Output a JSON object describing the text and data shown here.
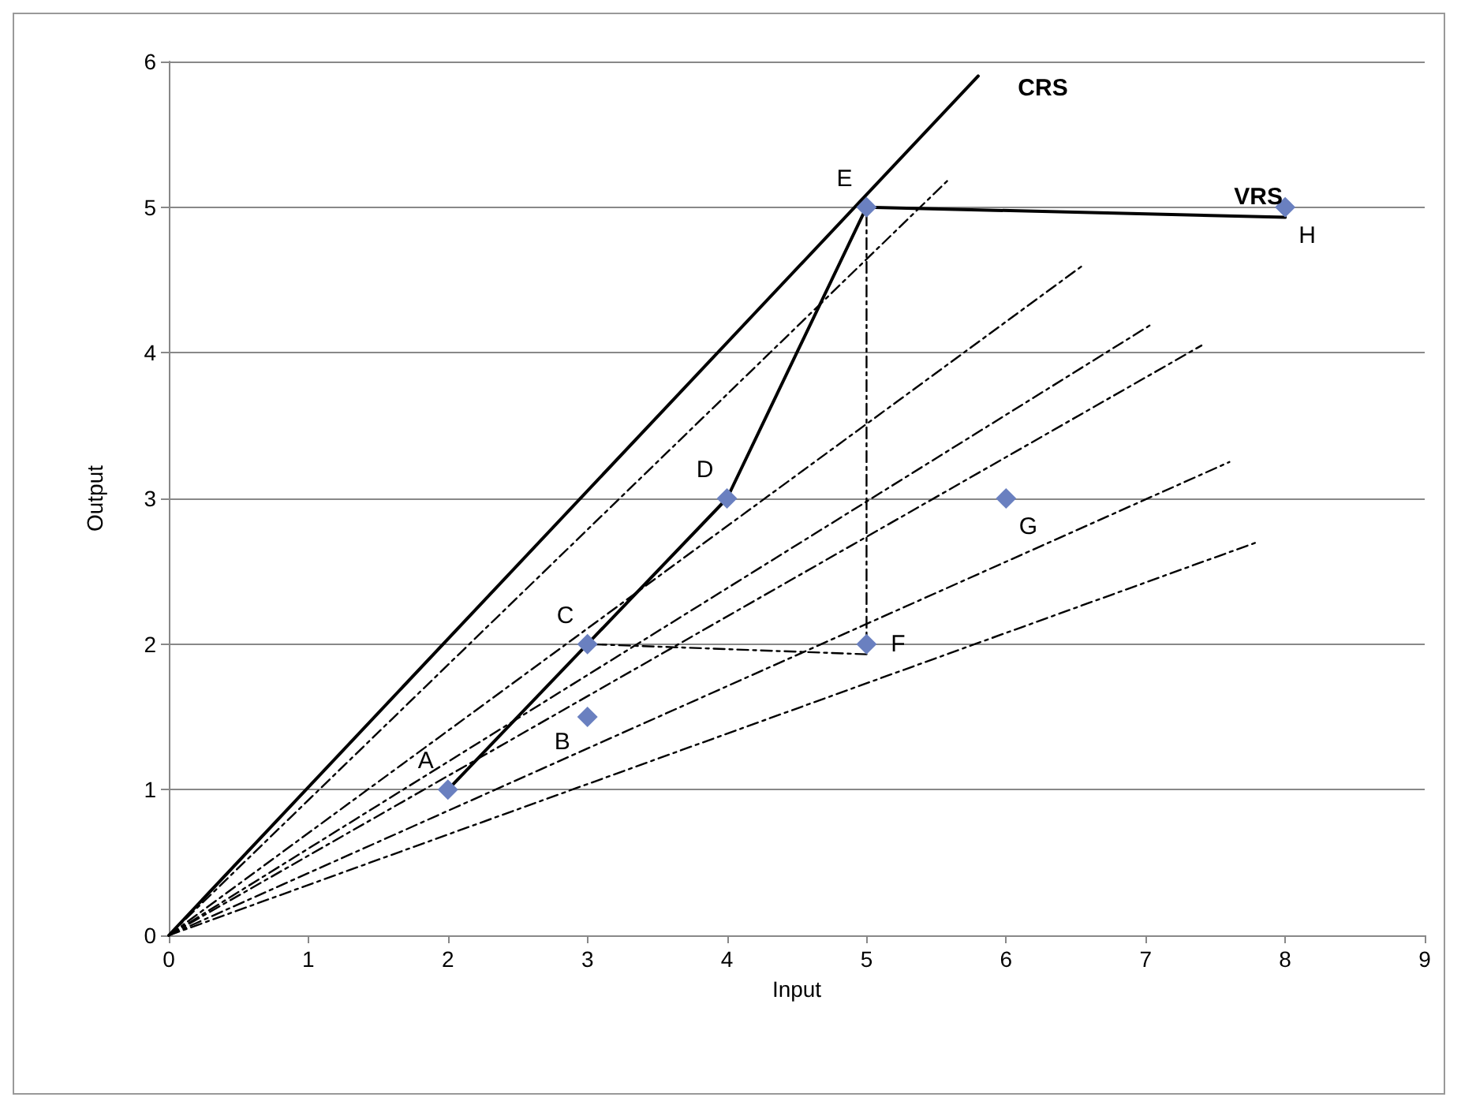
{
  "chart_data": {
    "type": "scatter",
    "xlabel": "Input",
    "ylabel": "Output",
    "xlim": [
      0,
      9
    ],
    "xticks": [
      0,
      1,
      2,
      3,
      4,
      5,
      6,
      7,
      8,
      9
    ],
    "ylim": [
      0,
      6
    ],
    "yticks": [
      0,
      1,
      2,
      3,
      4,
      5,
      6
    ],
    "grid": "y",
    "legend": false,
    "marker": "diamond",
    "series": [
      {
        "type": "line",
        "name": "CRS",
        "color": "#000000",
        "line_style": "solid",
        "marker": "none",
        "x": [
          0,
          5.8
        ],
        "values": [
          0,
          5.9
        ]
      },
      {
        "type": "line",
        "name": "VRS",
        "color": "#000000",
        "line_style": "solid",
        "marker": "none",
        "x": [
          2,
          3,
          4,
          5,
          8
        ],
        "values": [
          1,
          2,
          3,
          5,
          4.93
        ]
      },
      {
        "type": "line",
        "color": "#000000",
        "line_style": "dashed",
        "marker": "none",
        "x": [
          0,
          5.6
        ],
        "values": [
          0,
          5.2
        ]
      },
      {
        "type": "line",
        "color": "#000000",
        "line_style": "dashed",
        "marker": "none",
        "x": [
          0,
          6.55
        ],
        "values": [
          0,
          4.6
        ]
      },
      {
        "type": "line",
        "color": "#000000",
        "line_style": "dashed",
        "marker": "none",
        "x": [
          0,
          7.05
        ],
        "values": [
          0,
          4.2
        ]
      },
      {
        "type": "line",
        "color": "#000000",
        "line_style": "dashed",
        "marker": "none",
        "x": [
          0,
          7.4
        ],
        "values": [
          0,
          4.05
        ]
      },
      {
        "type": "line",
        "color": "#000000",
        "line_style": "dashed",
        "marker": "none",
        "x": [
          0,
          7.6
        ],
        "values": [
          0,
          3.25
        ]
      },
      {
        "type": "line",
        "color": "#000000",
        "line_style": "dashed",
        "marker": "none",
        "x": [
          0,
          7.8
        ],
        "values": [
          0,
          2.7
        ]
      },
      {
        "type": "line",
        "color": "#000000",
        "line_style": "dashed",
        "marker": "none",
        "x": [
          5,
          5
        ],
        "values": [
          1.95,
          5
        ]
      },
      {
        "type": "line",
        "color": "#000000",
        "line_style": "dashed",
        "marker": "none",
        "x": [
          5,
          3
        ],
        "values": [
          1.93,
          2
        ]
      },
      {
        "name": "A",
        "color": "#6a80c0",
        "x": [
          2
        ],
        "values": [
          1
        ]
      },
      {
        "name": "B",
        "color": "#6a80c0",
        "x": [
          3
        ],
        "values": [
          1.5
        ]
      },
      {
        "name": "C",
        "color": "#6a80c0",
        "x": [
          3
        ],
        "values": [
          2
        ]
      },
      {
        "name": "D",
        "color": "#6a80c0",
        "x": [
          4
        ],
        "values": [
          3
        ]
      },
      {
        "name": "E",
        "color": "#6a80c0",
        "x": [
          5
        ],
        "values": [
          5
        ]
      },
      {
        "name": "F",
        "color": "#6a80c0",
        "x": [
          5
        ],
        "values": [
          2
        ]
      },
      {
        "name": "G",
        "color": "#6a80c0",
        "x": [
          6
        ],
        "values": [
          3
        ]
      },
      {
        "name": "H",
        "color": "#6a80c0",
        "x": [
          8
        ],
        "values": [
          5
        ]
      }
    ]
  }
}
